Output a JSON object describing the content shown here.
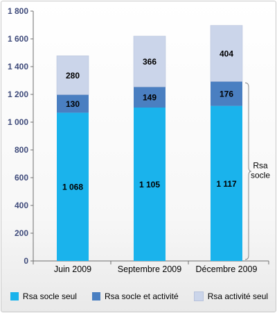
{
  "chart_data": {
    "type": "bar",
    "stacked": true,
    "categories": [
      "Juin 2009",
      "Septembre 2009",
      "Décembre 2009"
    ],
    "series": [
      {
        "name": "Rsa socle seul",
        "color": "#1ab3ec",
        "values": [
          1068,
          1105,
          1117
        ],
        "labels": [
          "1 068",
          "1 105",
          "1 117"
        ]
      },
      {
        "name": "Rsa socle et activité",
        "color": "#4a7fc1",
        "values": [
          130,
          149,
          176
        ],
        "labels": [
          "130",
          "149",
          "176"
        ]
      },
      {
        "name": "Rsa activité seul",
        "color": "#cbd5ea",
        "values": [
          280,
          366,
          404
        ],
        "labels": [
          "280",
          "366",
          "404"
        ]
      }
    ],
    "ylim": [
      0,
      1800
    ],
    "yticks": [
      0,
      200,
      400,
      600,
      800,
      1000,
      1200,
      1400,
      1600,
      1800
    ],
    "ytick_labels": [
      "0",
      "200",
      "400",
      "600",
      "800",
      "1 000",
      "1 200",
      "1 400",
      "1 600",
      "1 800"
    ],
    "annotation": {
      "text_lines": [
        "Rsa",
        "socle"
      ]
    },
    "legend": "bottom",
    "grid": false
  }
}
